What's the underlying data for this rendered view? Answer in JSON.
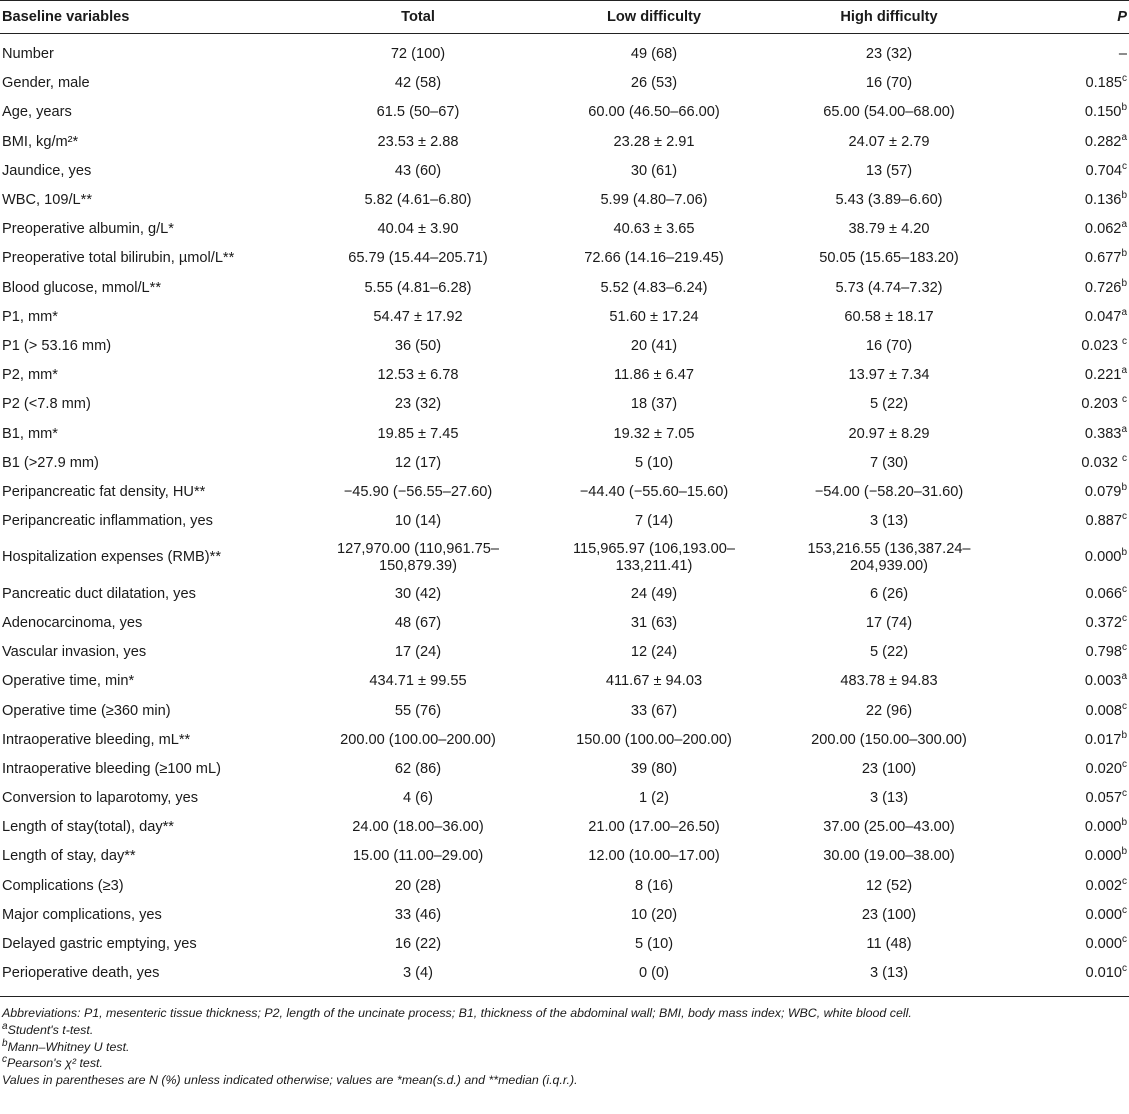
{
  "table": {
    "headers": [
      "Baseline variables",
      "Total",
      "Low difficulty",
      "High difficulty",
      "P"
    ],
    "rows": [
      {
        "label": "Number",
        "total": "72 (100)",
        "low": "49 (68)",
        "high": "23 (32)",
        "p": "–",
        "sup": ""
      },
      {
        "label": "Gender, male",
        "total": "42 (58)",
        "low": "26 (53)",
        "high": "16 (70)",
        "p": "0.185",
        "sup": "c"
      },
      {
        "label": "Age, years",
        "total": "61.5 (50–67)",
        "low": "60.00 (46.50–66.00)",
        "high": "65.00 (54.00–68.00)",
        "p": "0.150",
        "sup": "b"
      },
      {
        "label": "BMI, kg/m²*",
        "total": "23.53 ± 2.88",
        "low": "23.28 ± 2.91",
        "high": "24.07 ± 2.79",
        "p": "0.282",
        "sup": "a"
      },
      {
        "label": "Jaundice, yes",
        "total": "43 (60)",
        "low": "30 (61)",
        "high": "13 (57)",
        "p": "0.704",
        "sup": "c"
      },
      {
        "label": "WBC, 109/L**",
        "total": "5.82 (4.61–6.80)",
        "low": "5.99 (4.80–7.06)",
        "high": "5.43 (3.89–6.60)",
        "p": "0.136",
        "sup": "b"
      },
      {
        "label": "Preoperative albumin, g/L*",
        "total": "40.04 ± 3.90",
        "low": "40.63 ± 3.65",
        "high": "38.79 ± 4.20",
        "p": "0.062",
        "sup": "a"
      },
      {
        "label": "Preoperative total bilirubin, µmol/L**",
        "total": "65.79 (15.44–205.71)",
        "low": "72.66 (14.16–219.45)",
        "high": "50.05 (15.65–183.20)",
        "p": "0.677",
        "sup": "b"
      },
      {
        "label": "Blood glucose, mmol/L**",
        "total": "5.55 (4.81–6.28)",
        "low": "5.52 (4.83–6.24)",
        "high": "5.73 (4.74–7.32)",
        "p": "0.726",
        "sup": "b"
      },
      {
        "label": "P1, mm*",
        "total": "54.47 ± 17.92",
        "low": "51.60 ± 17.24",
        "high": "60.58 ± 18.17",
        "p": "0.047",
        "sup": "a"
      },
      {
        "label": "P1 (> 53.16 mm)",
        "total": "36 (50)",
        "low": "20 (41)",
        "high": "16 (70)",
        "p": "0.023 ",
        "sup": "c"
      },
      {
        "label": "P2, mm*",
        "total": "12.53 ± 6.78",
        "low": "11.86 ± 6.47",
        "high": "13.97 ± 7.34",
        "p": "0.221",
        "sup": "a"
      },
      {
        "label": "P2 (<7.8 mm)",
        "total": "23 (32)",
        "low": "18 (37)",
        "high": "5 (22)",
        "p": "0.203 ",
        "sup": "c"
      },
      {
        "label": "B1, mm*",
        "total": "19.85 ± 7.45",
        "low": "19.32 ± 7.05",
        "high": "20.97 ± 8.29",
        "p": "0.383",
        "sup": "a"
      },
      {
        "label": "B1 (>27.9 mm)",
        "total": "12 (17)",
        "low": "5 (10)",
        "high": "7 (30)",
        "p": "0.032 ",
        "sup": "c"
      },
      {
        "label": "Peripancreatic fat density, HU**",
        "total": "−45.90 (−56.55–27.60)",
        "low": "−44.40 (−55.60–15.60)",
        "high": "−54.00 (−58.20–31.60)",
        "p": "0.079",
        "sup": "b"
      },
      {
        "label": "Peripancreatic inflammation, yes",
        "total": "10 (14)",
        "low": "7 (14)",
        "high": "3 (13)",
        "p": "0.887",
        "sup": "c"
      },
      {
        "label": "Hospitalization expenses (RMB)**",
        "total": "127,970.00 (110,961.75–\n150,879.39)",
        "low": "115,965.97 (106,193.00–\n133,211.41)",
        "high": "153,216.55 (136,387.24–\n204,939.00)",
        "p": "0.000",
        "sup": "b"
      },
      {
        "label": "Pancreatic duct dilatation, yes",
        "total": "30 (42)",
        "low": "24 (49)",
        "high": "6 (26)",
        "p": "0.066",
        "sup": "c"
      },
      {
        "label": "Adenocarcinoma, yes",
        "total": "48 (67)",
        "low": "31 (63)",
        "high": "17 (74)",
        "p": "0.372",
        "sup": "c"
      },
      {
        "label": "Vascular invasion, yes",
        "total": "17 (24)",
        "low": "12 (24)",
        "high": "5 (22)",
        "p": "0.798",
        "sup": "c"
      },
      {
        "label": "Operative time, min*",
        "total": "434.71 ± 99.55",
        "low": "411.67 ± 94.03",
        "high": "483.78 ± 94.83",
        "p": "0.003",
        "sup": "a"
      },
      {
        "label": "Operative time (≥360 min)",
        "total": "55 (76)",
        "low": "33 (67)",
        "high": "22 (96)",
        "p": "0.008",
        "sup": "c"
      },
      {
        "label": "Intraoperative bleeding, mL**",
        "total": "200.00 (100.00–200.00)",
        "low": "150.00 (100.00–200.00)",
        "high": "200.00 (150.00–300.00)",
        "p": "0.017",
        "sup": "b"
      },
      {
        "label": "Intraoperative bleeding (≥100 mL)",
        "total": "62 (86)",
        "low": "39 (80)",
        "high": "23 (100)",
        "p": "0.020",
        "sup": "c"
      },
      {
        "label": "Conversion to laparotomy, yes",
        "total": "4 (6)",
        "low": "1 (2)",
        "high": "3 (13)",
        "p": "0.057",
        "sup": "c"
      },
      {
        "label": "Length of stay(total), day**",
        "total": "24.00 (18.00–36.00)",
        "low": "21.00 (17.00–26.50)",
        "high": "37.00 (25.00–43.00)",
        "p": "0.000",
        "sup": "b"
      },
      {
        "label": "Length of stay, day**",
        "total": "15.00 (11.00–29.00)",
        "low": "12.00 (10.00–17.00)",
        "high": "30.00 (19.00–38.00)",
        "p": "0.000",
        "sup": "b"
      },
      {
        "label": "Complications (≥3)",
        "total": "20 (28)",
        "low": "8 (16)",
        "high": "12 (52)",
        "p": "0.002",
        "sup": "c"
      },
      {
        "label": "Major complications, yes",
        "total": "33 (46)",
        "low": "10 (20)",
        "high": "23 (100)",
        "p": "0.000",
        "sup": "c"
      },
      {
        "label": "Delayed gastric emptying, yes",
        "total": "16 (22)",
        "low": "5 (10)",
        "high": "11 (48)",
        "p": "0.000",
        "sup": "c"
      },
      {
        "label": "Perioperative death, yes",
        "total": "3 (4)",
        "low": "0 (0)",
        "high": "3 (13)",
        "p": "0.010",
        "sup": "c"
      }
    ]
  },
  "notes": {
    "abbreviations": "Abbreviations: P1, mesenteric tissue thickness; P2, length of the uncinate process; B1, thickness of the abdominal wall; BMI, body mass index; WBC, white blood cell.",
    "a_mark": "a",
    "a_text": "Student's t-test.",
    "b_mark": "b",
    "b_text": "Mann–Whitney U test.",
    "c_mark": "c",
    "c_text": "Pearson's χ² test.",
    "values": "Values in parentheses are N (%) unless indicated otherwise; values are *mean(s.d.) and **median (i.q.r.)."
  }
}
